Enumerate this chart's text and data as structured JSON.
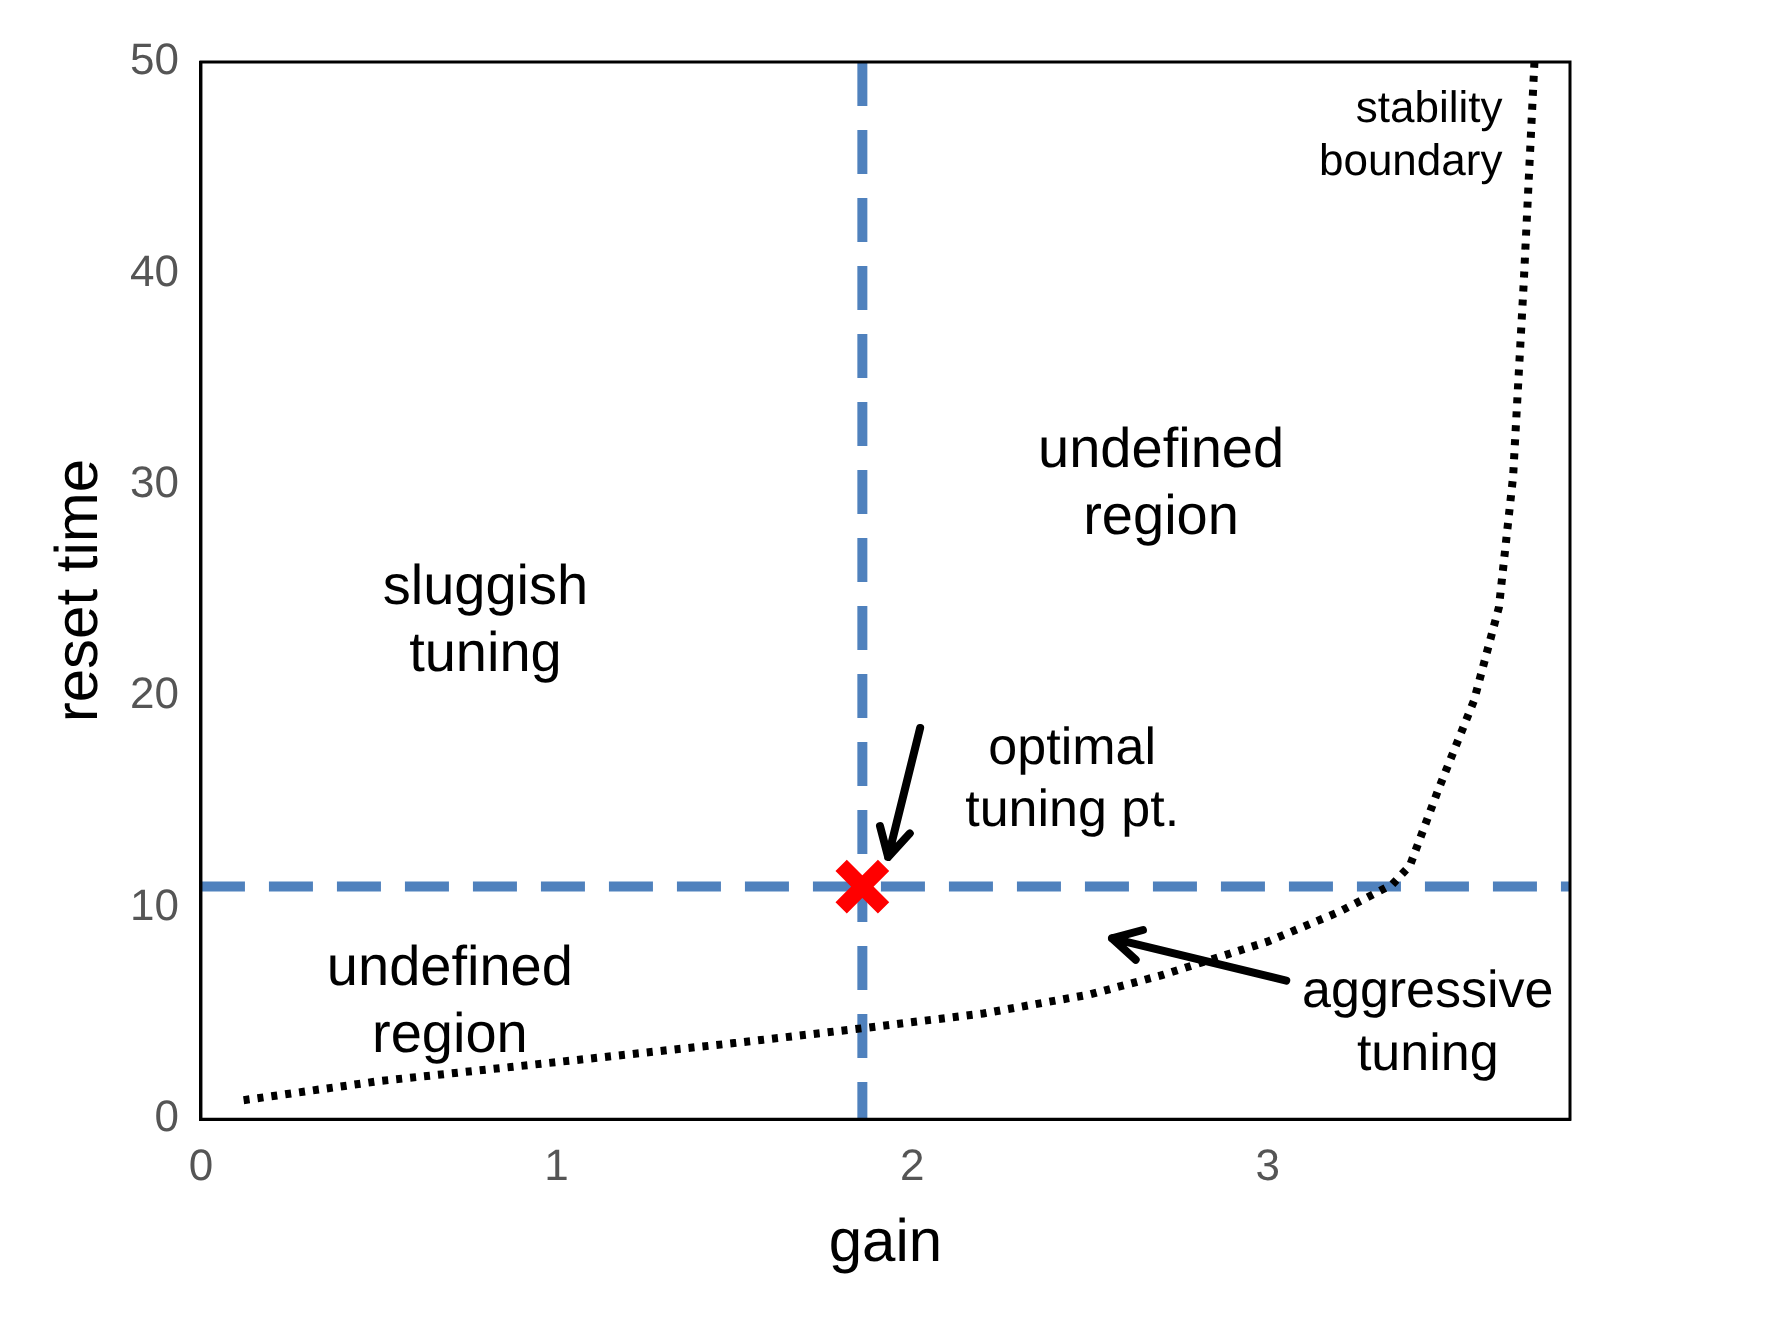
{
  "chart_data": {
    "type": "line",
    "xlabel": "gain",
    "ylabel": "reset time",
    "xlim": [
      0,
      3.85
    ],
    "ylim": [
      0,
      50
    ],
    "xticks": [
      0,
      1,
      2,
      3
    ],
    "yticks": [
      0,
      10,
      20,
      30,
      40,
      50
    ],
    "grid": false,
    "legend": false,
    "series": [
      {
        "color": "#000000",
        "line_style": "dotted",
        "marker": "none",
        "x": [
          0.12,
          0.5,
          1,
          1.5,
          1.86,
          2.2,
          2.5,
          2.7,
          3,
          3.2,
          3.35,
          3.4,
          3.48,
          3.58,
          3.65,
          3.69,
          3.72,
          3.75
        ],
        "values": [
          0.9,
          1.8,
          2.7,
          3.6,
          4.3,
          5.0,
          5.9,
          6.8,
          8.4,
          9.8,
          11.1,
          12,
          15.6,
          19.8,
          24.2,
          30.4,
          39.6,
          50
        ]
      },
      {
        "type": "scatter",
        "color": "#ff0000",
        "marker": "cross",
        "x": [
          1.86
        ],
        "values": [
          11
        ]
      }
    ],
    "ref_lines": [
      {
        "axis": "x",
        "value": 1.86,
        "color": "#4f81bd",
        "line_style": "dashed"
      },
      {
        "axis": "y",
        "value": 11,
        "color": "#4f81bd",
        "line_style": "dashed"
      }
    ],
    "annotations": [
      "stability boundary",
      "undefined region",
      "sluggish tuning",
      "optimal tuning pt.",
      "undefined region",
      "aggressive tuning"
    ]
  }
}
